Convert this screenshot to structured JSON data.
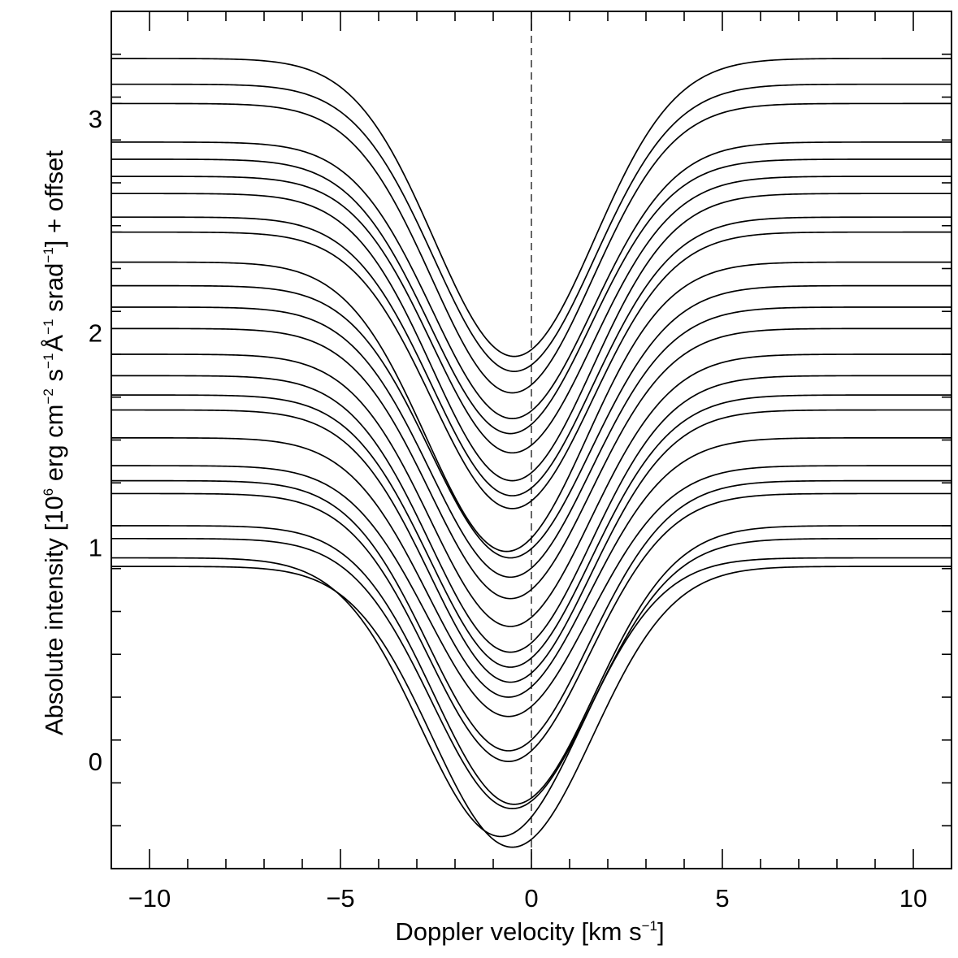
{
  "chart_data": {
    "type": "line",
    "title": "",
    "xlabel": {
      "prefix": "Doppler velocity [km s",
      "sup": "−1",
      "suffix": "]"
    },
    "ylabel": {
      "p1": "Absolute intensity [10",
      "s1": "6",
      "p2": " erg cm",
      "s2": "−2",
      "p3": " s",
      "s3": "−1",
      "p4": "Å",
      "s4": "−1",
      "p5": " srad",
      "s5": "−1",
      "p6": "] + offset"
    },
    "xlim": [
      -11,
      11
    ],
    "ylim": [
      -0.5,
      3.5
    ],
    "x_ticks": [
      {
        "value": -10,
        "label": "−10"
      },
      {
        "value": -5,
        "label": "−5"
      },
      {
        "value": 0,
        "label": "0"
      },
      {
        "value": 5,
        "label": "5"
      },
      {
        "value": 10,
        "label": "10"
      }
    ],
    "x_minor_step": 1,
    "y_ticks": [
      {
        "value": 0,
        "label": "0"
      },
      {
        "value": 1,
        "label": "1"
      },
      {
        "value": 2,
        "label": "2"
      },
      {
        "value": 3,
        "label": "3"
      }
    ],
    "y_minor_step": 0.2,
    "reference_line": {
      "x": 0,
      "style": "dashed"
    },
    "grid": false,
    "legend": "none",
    "line_color": "#000000",
    "profile_shape": "inverted Gaussian absorption line, continuum far from center",
    "series": [
      {
        "continuum": 3.28,
        "minimum": 1.89,
        "center": -0.45,
        "sigma": 2.1
      },
      {
        "continuum": 3.16,
        "minimum": 1.82,
        "center": -0.45,
        "sigma": 2.1
      },
      {
        "continuum": 3.07,
        "minimum": 1.72,
        "center": -0.5,
        "sigma": 2.1
      },
      {
        "continuum": 2.89,
        "minimum": 1.6,
        "center": -0.5,
        "sigma": 2.1
      },
      {
        "continuum": 2.81,
        "minimum": 1.53,
        "center": -0.55,
        "sigma": 2.1
      },
      {
        "continuum": 2.73,
        "minimum": 1.44,
        "center": -0.5,
        "sigma": 2.1
      },
      {
        "continuum": 2.65,
        "minimum": 1.31,
        "center": -0.5,
        "sigma": 2.1
      },
      {
        "continuum": 2.54,
        "minimum": 1.24,
        "center": -0.5,
        "sigma": 2.1
      },
      {
        "continuum": 2.47,
        "minimum": 1.18,
        "center": -0.5,
        "sigma": 2.1
      },
      {
        "continuum": 2.33,
        "minimum": 0.98,
        "center": -0.65,
        "sigma": 2.1
      },
      {
        "continuum": 2.22,
        "minimum": 0.95,
        "center": -0.55,
        "sigma": 2.1
      },
      {
        "continuum": 2.12,
        "minimum": 0.86,
        "center": -0.55,
        "sigma": 2.1
      },
      {
        "continuum": 2.02,
        "minimum": 0.76,
        "center": -0.55,
        "sigma": 2.1
      },
      {
        "continuum": 1.9,
        "minimum": 0.63,
        "center": -0.55,
        "sigma": 2.1
      },
      {
        "continuum": 1.8,
        "minimum": 0.51,
        "center": -0.55,
        "sigma": 2.1
      },
      {
        "continuum": 1.71,
        "minimum": 0.44,
        "center": -0.55,
        "sigma": 2.1
      },
      {
        "continuum": 1.64,
        "minimum": 0.37,
        "center": -0.55,
        "sigma": 2.1
      },
      {
        "continuum": 1.51,
        "minimum": 0.3,
        "center": -0.6,
        "sigma": 2.1
      },
      {
        "continuum": 1.38,
        "minimum": 0.21,
        "center": -0.6,
        "sigma": 2.1
      },
      {
        "continuum": 1.31,
        "minimum": 0.05,
        "center": -0.6,
        "sigma": 2.1
      },
      {
        "continuum": 1.25,
        "minimum": 0.0,
        "center": -0.6,
        "sigma": 2.1
      },
      {
        "continuum": 1.1,
        "minimum": -0.2,
        "center": -0.45,
        "sigma": 2.1
      },
      {
        "continuum": 1.04,
        "minimum": -0.22,
        "center": -0.5,
        "sigma": 2.1
      },
      {
        "continuum": 0.95,
        "minimum": -0.35,
        "center": -0.8,
        "sigma": 2.1
      },
      {
        "continuum": 0.91,
        "minimum": -0.4,
        "center": -0.5,
        "sigma": 2.1
      }
    ]
  }
}
